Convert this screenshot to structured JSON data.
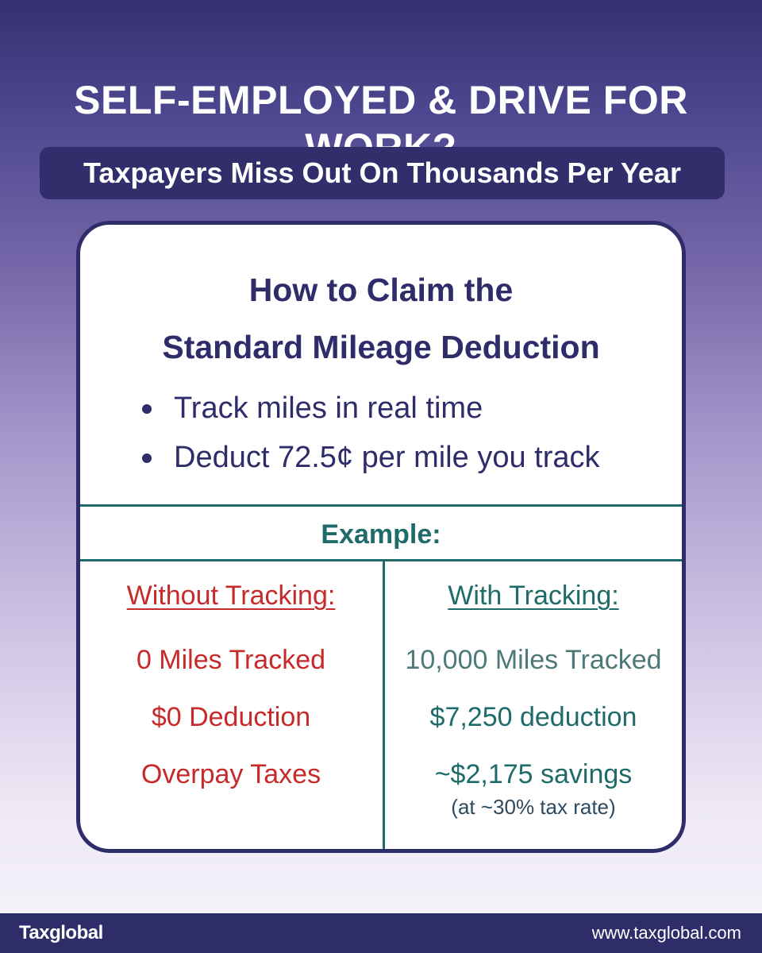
{
  "headline": "SELF-EMPLOYED & DRIVE FOR WORK?",
  "subheadline": "Taxpayers Miss Out On Thousands Per Year",
  "card": {
    "title_line1": "How to Claim the",
    "title_line2": "Standard Mileage Deduction",
    "bullets": [
      "Track miles in real time",
      "Deduct 72.5¢ per mile you track"
    ],
    "example_label": "Example:",
    "without": {
      "heading": "Without Tracking:",
      "rows": [
        "0 Miles Tracked",
        "$0 Deduction",
        "Overpay Taxes"
      ]
    },
    "with": {
      "heading": "With Tracking:",
      "rows": [
        "10,000 Miles Tracked",
        "$7,250 deduction",
        "~$2,175 savings"
      ],
      "note": "(at ~30% tax rate)"
    }
  },
  "footer": {
    "logo": "Taxglobal",
    "website": "www.taxglobal.com"
  },
  "colors": {
    "navy": "#2f2c6a",
    "teal": "#1e6b6a",
    "red": "#c62a2a"
  }
}
